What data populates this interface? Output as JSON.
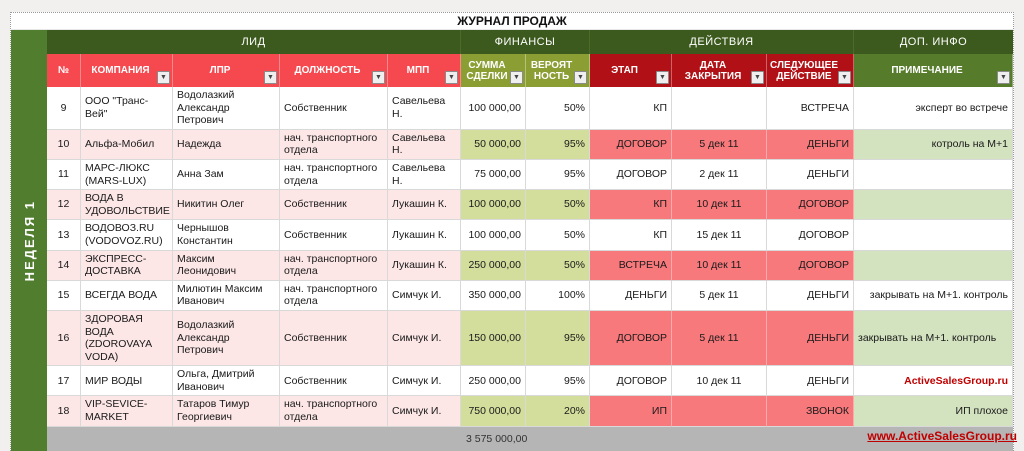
{
  "title": "ЖУРНАЛ ПРОДАЖ",
  "sidebar": {
    "label": "НЕДЕЛЯ  1"
  },
  "groups": {
    "lead": "ЛИД",
    "finance": "ФИНАНСЫ",
    "actions": "ДЕЙСТВИЯ",
    "extra": "ДОП. ИНФО"
  },
  "columns": {
    "num": "№",
    "company": "КОМПАНИЯ",
    "lpr": "ЛПР",
    "role": "ДОЛЖНОСТЬ",
    "mpp": "МПП",
    "amount": "СУММА СДЕЛКИ",
    "prob": "ВЕРОЯТ НОСТЬ",
    "stage": "ЭТАП",
    "close_date": "ДАТА ЗАКРЫТИЯ",
    "next_action": "СЛЕДУЮЩЕЕ ДЕЙСТВИЕ",
    "note": "ПРИМЕЧАНИЕ"
  },
  "rows": [
    {
      "num": "9",
      "company": "ООО \"Транс-Вей\"",
      "lpr": "Водолазкий Александр Петрович",
      "role": "Собственник",
      "mpp": "Савельева Н.",
      "amount": "100 000,00",
      "prob": "50%",
      "stage": "КП",
      "close_date": "",
      "next_action": "ВСТРЕЧА",
      "note": "эксперт во встрече",
      "shaded": false,
      "tall": false,
      "note_align": "right",
      "note_red": false
    },
    {
      "num": "10",
      "company": "Альфа-Мобил",
      "lpr": "Надежда",
      "role": "нач. транспортного отдела",
      "mpp": "Савельева Н.",
      "amount": "50 000,00",
      "prob": "95%",
      "stage": "ДОГОВОР",
      "close_date": "5 дек 11",
      "next_action": "ДЕНЬГИ",
      "note": "котроль на М+1",
      "shaded": true,
      "tall": false,
      "note_align": "right",
      "note_red": false
    },
    {
      "num": "11",
      "company": "МАРС-ЛЮКС (MARS-LUX)",
      "lpr": "Анна Зам",
      "role": "нач. транспортного отдела",
      "mpp": "Савельева Н.",
      "amount": "75 000,00",
      "prob": "95%",
      "stage": "ДОГОВОР",
      "close_date": "2 дек 11",
      "next_action": "ДЕНЬГИ",
      "note": "",
      "shaded": false,
      "tall": false,
      "note_align": "right",
      "note_red": false
    },
    {
      "num": "12",
      "company": "ВОДА В УДОВОЛЬСТВИЕ",
      "lpr": "Никитин Олег",
      "role": "Собственник",
      "mpp": "Лукашин К.",
      "amount": "100 000,00",
      "prob": "50%",
      "stage": "КП",
      "close_date": "10 дек 11",
      "next_action": "ДОГОВОР",
      "note": "",
      "shaded": true,
      "tall": false,
      "note_align": "right",
      "note_red": false
    },
    {
      "num": "13",
      "company": "ВОДОВОЗ.RU (VODOVOZ.RU)",
      "lpr": "Чернышов Константин",
      "role": "Собственник",
      "mpp": "Лукашин К.",
      "amount": "100 000,00",
      "prob": "50%",
      "stage": "КП",
      "close_date": "15 дек 11",
      "next_action": "ДОГОВОР",
      "note": "",
      "shaded": false,
      "tall": false,
      "note_align": "right",
      "note_red": false
    },
    {
      "num": "14",
      "company": "ЭКСПРЕСС-ДОСТАВКА",
      "lpr": "Максим Леонидович",
      "role": "нач. транспортного отдела",
      "mpp": "Лукашин К.",
      "amount": "250 000,00",
      "prob": "50%",
      "stage": "ВСТРЕЧА",
      "close_date": "10 дек 11",
      "next_action": "ДОГОВОР",
      "note": "",
      "shaded": true,
      "tall": false,
      "note_align": "right",
      "note_red": false
    },
    {
      "num": "15",
      "company": "ВСЕГДА ВОДА",
      "lpr": "Милютин Максим Иванович",
      "role": "нач. транспортного отдела",
      "mpp": "Симчук И.",
      "amount": "350 000,00",
      "prob": "100%",
      "stage": "ДЕНЬГИ",
      "close_date": "5 дек 11",
      "next_action": "ДЕНЬГИ",
      "note": "закрывать на М+1. контроль",
      "shaded": false,
      "tall": false,
      "note_align": "right",
      "note_red": false
    },
    {
      "num": "16",
      "company": "ЗДОРОВАЯ ВОДА (ZDOROVAYA VODA)",
      "lpr": "Водолазкий Александр Петрович",
      "role": "Собственник",
      "mpp": "Симчук И.",
      "amount": "150 000,00",
      "prob": "95%",
      "stage": "ДОГОВОР",
      "close_date": "5 дек 11",
      "next_action": "ДЕНЬГИ",
      "note": "закрывать на М+1. контроль",
      "shaded": true,
      "tall": true,
      "note_align": "left",
      "note_red": false
    },
    {
      "num": "17",
      "company": "МИР ВОДЫ",
      "lpr": "Ольга, Дмитрий Иванович",
      "role": "Собственник",
      "mpp": "Симчук И.",
      "amount": "250 000,00",
      "prob": "95%",
      "stage": "ДОГОВОР",
      "close_date": "10 дек 11",
      "next_action": "ДЕНЬГИ",
      "note": "ActiveSalesGroup.ru",
      "shaded": false,
      "tall": false,
      "note_align": "right",
      "note_red": true
    },
    {
      "num": "18",
      "company": "VIP-SEVICE-MARKET",
      "lpr": "Татаров Тимур Георгиевич",
      "role": "нач. транспортного отдела",
      "mpp": "Симчук И.",
      "amount": "750 000,00",
      "prob": "20%",
      "stage": "ИП",
      "close_date": "",
      "next_action": "ЗВОНОК",
      "note": "ИП плохое",
      "shaded": true,
      "tall": false,
      "note_align": "right",
      "note_red": false
    }
  ],
  "total": {
    "amount": "3 575 000,00"
  },
  "footer": {
    "link": "www.ActiveSalesGroup.ru"
  },
  "icons": {
    "filter": "▼"
  },
  "colors": {
    "band_dark_green": "#3d5a1e",
    "sidebar_green": "#507d2e",
    "header_red": "#f6494f",
    "header_olive": "#8a9e33",
    "header_dark_red": "#b11116",
    "header_green": "#567c2b",
    "row_pink": "#fce6e6",
    "cell_green": "#d3de9c",
    "cell_salmon": "#f8797c",
    "cell_sage": "#d3e2bf",
    "total_gray": "#b5b5b5",
    "link_red": "#c00000"
  }
}
